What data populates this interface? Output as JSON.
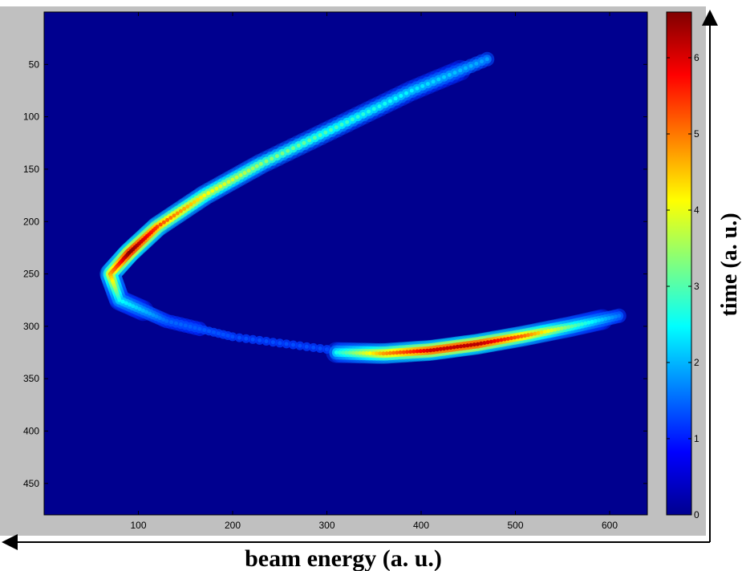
{
  "chart_data": {
    "type": "heatmap",
    "title": "",
    "xlabel": "beam energy (a. u.)",
    "ylabel": "time (a. u.)",
    "x_ticks": [
      100,
      200,
      300,
      400,
      500,
      600
    ],
    "y_ticks": [
      50,
      100,
      150,
      200,
      250,
      300,
      350,
      400,
      450
    ],
    "xlim": [
      0,
      640
    ],
    "ylim": [
      480,
      0
    ],
    "y_axis_reversed": true,
    "colormap": "jet",
    "colorbar": {
      "ticks": [
        0,
        1,
        2,
        3,
        4,
        5,
        6
      ],
      "range": [
        0,
        6.6
      ]
    },
    "features": [
      {
        "name": "upper-arc",
        "points": [
          [
            470,
            45
          ],
          [
            390,
            75
          ],
          [
            310,
            110
          ],
          [
            230,
            145
          ],
          [
            170,
            175
          ],
          [
            120,
            205
          ],
          [
            90,
            230
          ],
          [
            70,
            250
          ],
          [
            80,
            275
          ],
          [
            130,
            295
          ],
          [
            200,
            310
          ],
          [
            300,
            322
          ]
        ],
        "peak_intensity": [
          1.2,
          1.8,
          2.4,
          3.0,
          3.8,
          5.2,
          6.6,
          4.5,
          2.0,
          0.8,
          0.6,
          0.6
        ]
      },
      {
        "name": "lower-streak",
        "points": [
          [
            310,
            325
          ],
          [
            360,
            326
          ],
          [
            410,
            323
          ],
          [
            460,
            317
          ],
          [
            510,
            309
          ],
          [
            560,
            300
          ],
          [
            610,
            290
          ]
        ],
        "peak_intensity": [
          2.0,
          4.5,
          6.0,
          6.2,
          4.8,
          2.6,
          0.9
        ]
      }
    ]
  },
  "colors": {
    "frame": "#c0c0c0",
    "background_field": "#00008f",
    "arrow": "#000000"
  }
}
